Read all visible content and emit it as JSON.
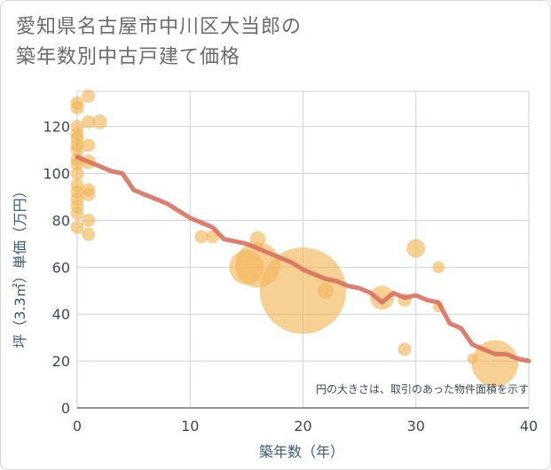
{
  "header": {
    "title_line1": "愛知県名古屋市中川区大当郎の",
    "title_line2": "築年数別中古戸建て価格"
  },
  "chart_data": {
    "type": "scatter",
    "xlabel": "築年数（年）",
    "ylabel": "坪（3.3㎡）単価（万円）",
    "xlim": [
      0,
      40
    ],
    "ylim": [
      0,
      135
    ],
    "xticks": [
      0,
      10,
      20,
      30,
      40
    ],
    "yticks": [
      0,
      20,
      40,
      60,
      80,
      100,
      120
    ],
    "grid": true,
    "note": "円の大きさは、取引のあった物件面積を示す",
    "colors": {
      "bubble": "#f3b75a",
      "trend": "#d9705e",
      "grid": "#c9d3dd"
    },
    "points": [
      {
        "x": 0,
        "y": 130,
        "size": 1
      },
      {
        "x": 0,
        "y": 128,
        "size": 1
      },
      {
        "x": 0,
        "y": 120,
        "size": 1
      },
      {
        "x": 0,
        "y": 117,
        "size": 1
      },
      {
        "x": 0,
        "y": 115,
        "size": 1
      },
      {
        "x": 0,
        "y": 112,
        "size": 1
      },
      {
        "x": 0,
        "y": 110,
        "size": 1
      },
      {
        "x": 0,
        "y": 106,
        "size": 1
      },
      {
        "x": 0,
        "y": 104,
        "size": 1
      },
      {
        "x": 0,
        "y": 100,
        "size": 1
      },
      {
        "x": 0,
        "y": 95,
        "size": 1
      },
      {
        "x": 0,
        "y": 92,
        "size": 1
      },
      {
        "x": 0,
        "y": 89,
        "size": 1
      },
      {
        "x": 0,
        "y": 86,
        "size": 1
      },
      {
        "x": 0,
        "y": 83,
        "size": 1
      },
      {
        "x": 0,
        "y": 77,
        "size": 1
      },
      {
        "x": 1,
        "y": 133,
        "size": 1
      },
      {
        "x": 1,
        "y": 122,
        "size": 1
      },
      {
        "x": 2,
        "y": 122,
        "size": 1.1
      },
      {
        "x": 1,
        "y": 112,
        "size": 1
      },
      {
        "x": 1,
        "y": 105,
        "size": 1.1
      },
      {
        "x": 1,
        "y": 93,
        "size": 1
      },
      {
        "x": 1,
        "y": 91,
        "size": 1
      },
      {
        "x": 1,
        "y": 80,
        "size": 1
      },
      {
        "x": 1,
        "y": 74,
        "size": 1
      },
      {
        "x": 11,
        "y": 73,
        "size": 1
      },
      {
        "x": 12,
        "y": 73,
        "size": 1
      },
      {
        "x": 16,
        "y": 72,
        "size": 1.2
      },
      {
        "x": 15,
        "y": 60,
        "size": 2.6
      },
      {
        "x": 16,
        "y": 61,
        "size": 3.4
      },
      {
        "x": 20,
        "y": 50,
        "size": 6.5
      },
      {
        "x": 22,
        "y": 50,
        "size": 1.2
      },
      {
        "x": 27,
        "y": 47,
        "size": 1.8
      },
      {
        "x": 29,
        "y": 46,
        "size": 1
      },
      {
        "x": 30,
        "y": 68,
        "size": 1.4
      },
      {
        "x": 29,
        "y": 25,
        "size": 1
      },
      {
        "x": 32,
        "y": 60,
        "size": 0.9
      },
      {
        "x": 32,
        "y": 43,
        "size": 0.8
      },
      {
        "x": 35,
        "y": 21,
        "size": 0.8
      },
      {
        "x": 37,
        "y": 19,
        "size": 3.5
      }
    ],
    "trend": [
      {
        "x": 0,
        "y": 107
      },
      {
        "x": 1,
        "y": 105
      },
      {
        "x": 2,
        "y": 103
      },
      {
        "x": 3,
        "y": 101
      },
      {
        "x": 4,
        "y": 100
      },
      {
        "x": 5,
        "y": 93
      },
      {
        "x": 6,
        "y": 91
      },
      {
        "x": 7,
        "y": 89
      },
      {
        "x": 8,
        "y": 87
      },
      {
        "x": 9,
        "y": 84
      },
      {
        "x": 10,
        "y": 81
      },
      {
        "x": 11,
        "y": 79
      },
      {
        "x": 12,
        "y": 77
      },
      {
        "x": 13,
        "y": 72
      },
      {
        "x": 14,
        "y": 71
      },
      {
        "x": 15,
        "y": 70
      },
      {
        "x": 16,
        "y": 68
      },
      {
        "x": 17,
        "y": 66
      },
      {
        "x": 18,
        "y": 64
      },
      {
        "x": 19,
        "y": 62
      },
      {
        "x": 20,
        "y": 59
      },
      {
        "x": 21,
        "y": 57
      },
      {
        "x": 22,
        "y": 55
      },
      {
        "x": 23,
        "y": 54
      },
      {
        "x": 24,
        "y": 52
      },
      {
        "x": 25,
        "y": 51
      },
      {
        "x": 26,
        "y": 49
      },
      {
        "x": 27,
        "y": 45
      },
      {
        "x": 28,
        "y": 49
      },
      {
        "x": 29,
        "y": 47
      },
      {
        "x": 30,
        "y": 48
      },
      {
        "x": 31,
        "y": 46
      },
      {
        "x": 32,
        "y": 45
      },
      {
        "x": 33,
        "y": 36
      },
      {
        "x": 34,
        "y": 34
      },
      {
        "x": 35,
        "y": 27
      },
      {
        "x": 36,
        "y": 25
      },
      {
        "x": 37,
        "y": 23
      },
      {
        "x": 38,
        "y": 23
      },
      {
        "x": 39,
        "y": 21
      },
      {
        "x": 40,
        "y": 20
      }
    ]
  }
}
